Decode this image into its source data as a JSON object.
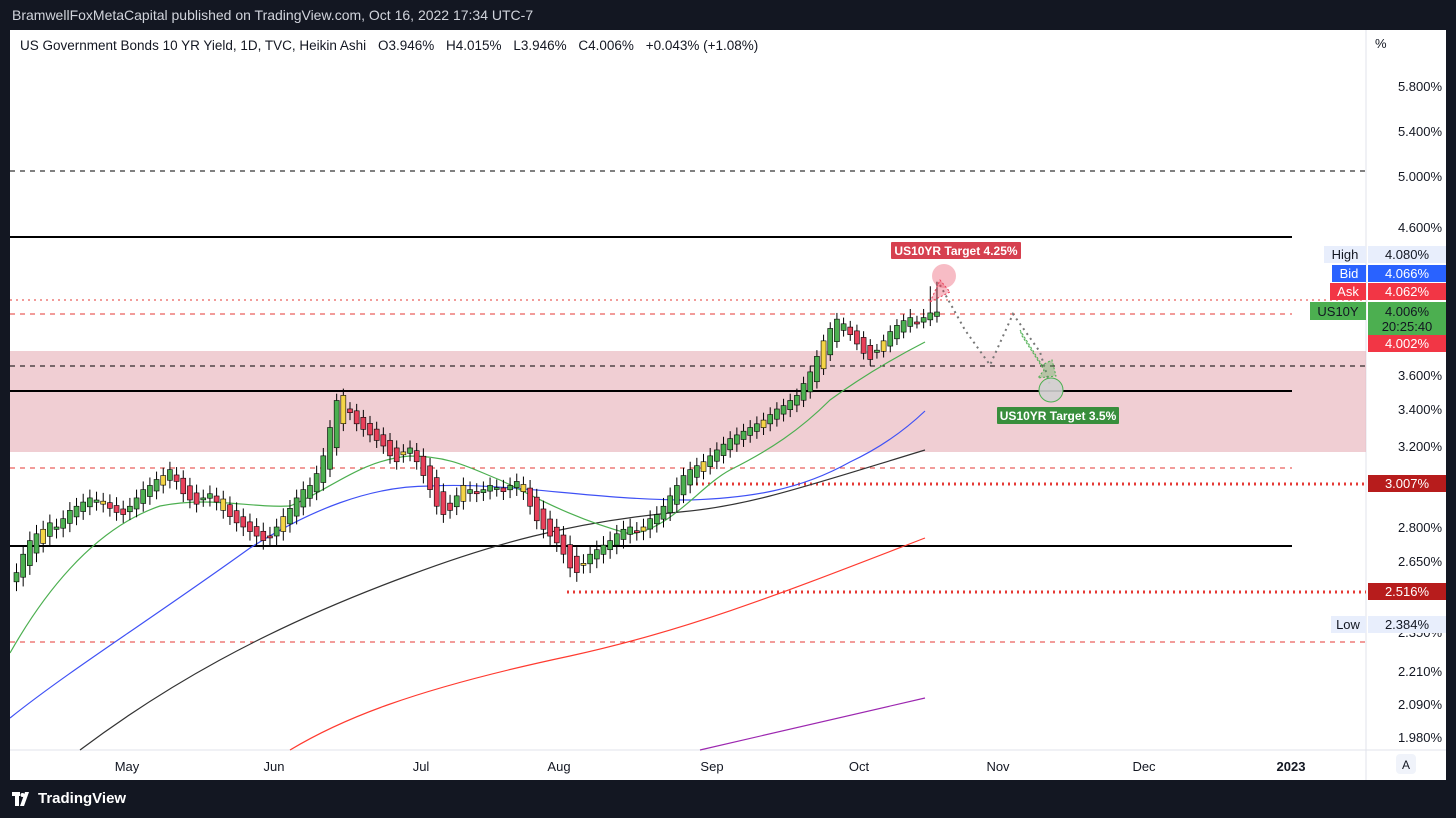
{
  "header": {
    "published": "BramwellFoxMetaCapital published on TradingView.com, Oct 16, 2022 17:34 UTC-7"
  },
  "legend": {
    "symbol": "US Government Bonds 10 YR Yield, 1D, TVC, Heikin Ashi",
    "open": "O3.946%",
    "high": "H4.015%",
    "low": "L3.946%",
    "close": "C4.006%",
    "change": "+0.043% (+1.08%)"
  },
  "footer": {
    "brand": "TradingView",
    "auto_button": "A"
  },
  "price_axis": {
    "unit": "%",
    "ticks": [
      "5.800%",
      "5.400%",
      "5.000%",
      "4.600%",
      "3.600%",
      "3.400%",
      "3.200%",
      "2.800%",
      "2.650%",
      "2.350%",
      "2.210%",
      "2.090%",
      "1.980%"
    ]
  },
  "time_axis": {
    "ticks": [
      "May",
      "Jun",
      "Jul",
      "Aug",
      "Sep",
      "Oct",
      "Nov",
      "Dec",
      "2023"
    ]
  },
  "price_labels": {
    "high": {
      "label": "High",
      "value": "4.080%"
    },
    "bid": {
      "label": "Bid",
      "value": "4.066%"
    },
    "ask": {
      "label": "Ask",
      "value": "4.062%"
    },
    "last": {
      "label": "US10Y",
      "value": "4.006%",
      "countdown": "20:25:40"
    },
    "prev": {
      "value": "4.002%"
    },
    "sup1": {
      "value": "3.007%"
    },
    "sup2": {
      "value": "2.516%"
    },
    "low": {
      "label": "Low",
      "value": "2.384%"
    }
  },
  "annotations": {
    "target_up": "US10YR Target 4.25%",
    "target_down": "US10YR Target 3.5%"
  },
  "colors": {
    "up": "#4caf50",
    "down": "#e8405a",
    "doji_up": "#f5d547",
    "doji_down": "#ffffff",
    "zone": "#e8b4bc",
    "ma20": "#4caf50",
    "ma50": "#3f51f5",
    "ma100": "#333333",
    "ma200": "#ff3b30",
    "ma_long": "#9c27b0"
  },
  "chart_data": {
    "type": "candlestick",
    "title": "US Government Bonds 10 YR Yield, 1D, TVC, Heikin Ashi",
    "ylabel": "%",
    "last_close": 4.006,
    "horizontal_levels": [
      {
        "value": 5.05,
        "style": "dashed"
      },
      {
        "value": 4.55,
        "style": "solid"
      },
      {
        "value": 4.1,
        "style": "dotted-red"
      },
      {
        "value": 4.0,
        "style": "dashed-red"
      },
      {
        "value": 3.65,
        "style": "dashed"
      },
      {
        "value": 3.5,
        "style": "solid"
      },
      {
        "value": 3.1,
        "style": "dashed-red"
      },
      {
        "value": 3.007,
        "style": "dotted-red"
      },
      {
        "value": 2.7,
        "style": "solid"
      },
      {
        "value": 2.516,
        "style": "dotted-red"
      },
      {
        "value": 2.3,
        "style": "dashed-red"
      }
    ],
    "zone": {
      "from": 3.17,
      "to": 3.73
    },
    "targets": [
      4.25,
      3.5
    ]
  }
}
